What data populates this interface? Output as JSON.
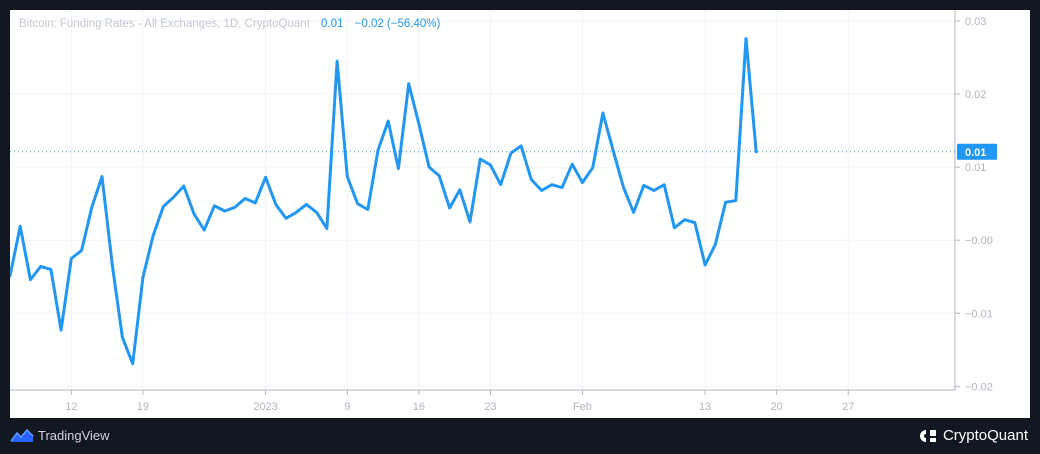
{
  "legend": {
    "title": "Bitcoin: Funding Rates - All Exchanges, 1D, CryptoQuant",
    "value": "0.01",
    "change": "−0.02 (−56.40%)"
  },
  "footer": {
    "left_brand": "TradingView",
    "right_brand": "CryptoQuant"
  },
  "colors": {
    "line": "#2196f3",
    "background": "#ffffff",
    "frame": "#131722",
    "grid": "#f0f3fa",
    "axis_text": "#b2b5be"
  },
  "icons": [
    "tradingview-logo-icon",
    "cryptoquant-logo-icon"
  ],
  "chart_data": {
    "type": "line",
    "title": "Bitcoin: Funding Rates - All Exchanges, 1D, CryptoQuant",
    "xlabel": "",
    "ylabel": "",
    "ylim": [
      -0.0205,
      0.0315
    ],
    "xlim": [
      0,
      81
    ],
    "grid": true,
    "y_ticks": [
      {
        "value": 0.03,
        "label": "0.03"
      },
      {
        "value": 0.02,
        "label": "0.02"
      },
      {
        "value": 0.01,
        "label": "0.01"
      },
      {
        "value": 0.0,
        "label": "−0.00"
      },
      {
        "value": -0.01,
        "label": "−0.01"
      },
      {
        "value": -0.02,
        "label": "−0.02"
      }
    ],
    "x_ticks": [
      {
        "index": 6,
        "label": "12"
      },
      {
        "index": 13,
        "label": "19"
      },
      {
        "index": 25,
        "label": "2023"
      },
      {
        "index": 33,
        "label": "9"
      },
      {
        "index": 40,
        "label": "16"
      },
      {
        "index": 47,
        "label": "23"
      },
      {
        "index": 56,
        "label": "Feb"
      },
      {
        "index": 68,
        "label": "13"
      },
      {
        "index": 75,
        "label": "20"
      },
      {
        "index": 82,
        "label": "27"
      }
    ],
    "last_value_label": "0.01",
    "series": [
      {
        "values": [
          -0.0049,
          0.0019,
          -0.0054,
          -0.0036,
          -0.004,
          -0.0123,
          -0.0025,
          -0.0014,
          0.0045,
          0.0087,
          -0.0033,
          -0.0133,
          -0.0169,
          -0.0051,
          0.0006,
          0.0046,
          0.0059,
          0.0074,
          0.0036,
          0.0014,
          0.0047,
          0.004,
          0.0045,
          0.0057,
          0.0051,
          0.0086,
          0.0049,
          0.003,
          0.0038,
          0.0049,
          0.0038,
          0.0016,
          0.0245,
          0.0087,
          0.005,
          0.0042,
          0.0123,
          0.0163,
          0.0098,
          0.0214,
          0.0159,
          0.01,
          0.0088,
          0.0044,
          0.0069,
          0.0025,
          0.0111,
          0.0103,
          0.0076,
          0.0119,
          0.0129,
          0.0083,
          0.0068,
          0.0076,
          0.0072,
          0.0104,
          0.0079,
          0.0099,
          0.0174,
          0.0123,
          0.0073,
          0.0038,
          0.0075,
          0.0068,
          0.0076,
          0.0017,
          0.0028,
          0.0024,
          -0.0034,
          -0.0006,
          0.0052,
          0.0054,
          0.0276,
          0.0121
        ]
      }
    ]
  }
}
